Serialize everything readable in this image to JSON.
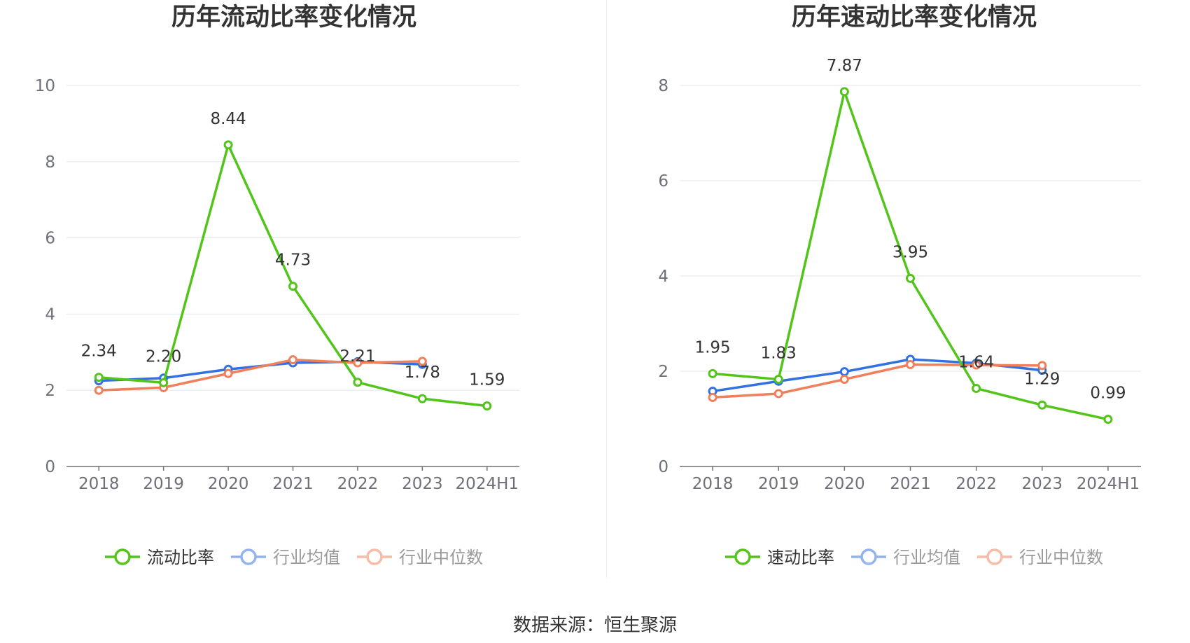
{
  "chart_data": [
    {
      "type": "line",
      "title": "历年流动比率变化情况",
      "categories": [
        "2018",
        "2019",
        "2020",
        "2021",
        "2022",
        "2023",
        "2024H1"
      ],
      "ylim": [
        0,
        10
      ],
      "yticks": [
        "0",
        "2",
        "4",
        "6",
        "8",
        "10"
      ],
      "grid": true,
      "legend_position": "bottom-center",
      "series": [
        {
          "name": "流动比率",
          "color": "#52c41a",
          "values": [
            2.34,
            2.2,
            8.44,
            4.73,
            2.21,
            1.78,
            1.59
          ],
          "labels": [
            "2.34",
            "2.20",
            "8.44",
            "4.73",
            "2.21",
            "1.78",
            "1.59"
          ]
        },
        {
          "name": "行业均值",
          "color": "#3370e0",
          "values": [
            2.25,
            2.32,
            2.55,
            2.72,
            2.75,
            2.68,
            null
          ]
        },
        {
          "name": "行业中位数",
          "color": "#f07f5b",
          "values": [
            2.0,
            2.07,
            2.44,
            2.8,
            2.72,
            2.76,
            null
          ]
        }
      ]
    },
    {
      "type": "line",
      "title": "历年速动比率变化情况",
      "categories": [
        "2018",
        "2019",
        "2020",
        "2021",
        "2022",
        "2023",
        "2024H1"
      ],
      "ylim": [
        0,
        8
      ],
      "yticks": [
        "0",
        "2",
        "4",
        "6",
        "8"
      ],
      "grid": true,
      "legend_position": "bottom-center",
      "series": [
        {
          "name": "速动比率",
          "color": "#52c41a",
          "values": [
            1.95,
            1.83,
            7.87,
            3.95,
            1.64,
            1.29,
            0.99
          ],
          "labels": [
            "1.95",
            "1.83",
            "7.87",
            "3.95",
            "1.64",
            "1.29",
            "0.99"
          ]
        },
        {
          "name": "行业均值",
          "color": "#3370e0",
          "values": [
            1.58,
            1.79,
            1.99,
            2.25,
            2.17,
            2.02,
            null
          ]
        },
        {
          "name": "行业中位数",
          "color": "#f07f5b",
          "values": [
            1.45,
            1.53,
            1.83,
            2.14,
            2.13,
            2.12,
            null
          ]
        }
      ]
    }
  ],
  "footer": {
    "source": "数据来源：恒生聚源"
  }
}
